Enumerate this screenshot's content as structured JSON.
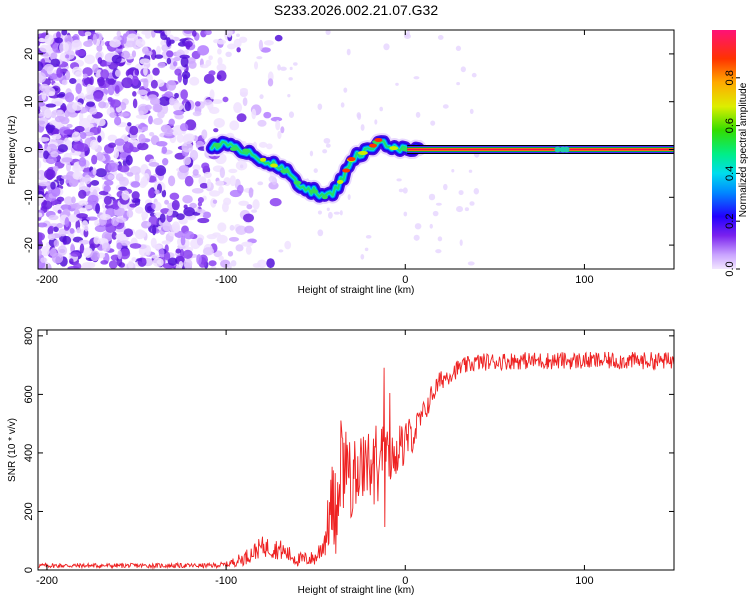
{
  "title": "S233.2026.002.21.07.G32",
  "chart_data": [
    {
      "type": "heatmap",
      "name": "spectrogram",
      "xlabel": "Height of straight line (km)",
      "ylabel": "Frequency (Hz)",
      "xlim": [
        -205,
        150
      ],
      "ylim": [
        -25,
        25
      ],
      "xticks": [
        -200,
        -100,
        0,
        100
      ],
      "xtick_labels": [
        "-200",
        "-100",
        "0",
        "100"
      ],
      "yticks": [
        -20,
        -10,
        0,
        10,
        20
      ],
      "ytick_labels": [
        "-20",
        "-10",
        "0",
        "10",
        "20"
      ],
      "ridge": {
        "x": [
          -108,
          -100,
          -95,
          -90,
          -85,
          -80,
          -75,
          -70,
          -65,
          -60,
          -55,
          -50,
          -45,
          -40,
          -35,
          -30,
          -25,
          -20,
          -15,
          -10,
          -5,
          0,
          5,
          150
        ],
        "freq": [
          1,
          1,
          0,
          0,
          -1,
          -2,
          -3,
          -4,
          -5,
          -7,
          -8,
          -9,
          -10,
          -9,
          -6,
          -2,
          -1,
          0,
          2,
          1,
          0,
          0,
          0,
          0
        ]
      },
      "noise_region": [
        -205,
        -100
      ],
      "colorbar": {
        "label": "Normalized spectral amplitude",
        "range": [
          0.0,
          1.0
        ],
        "ticks": [
          0.0,
          0.2,
          0.4,
          0.6,
          0.8
        ],
        "tick_labels": [
          "0.0",
          "0.2",
          "0.4",
          "0.6",
          "0.8"
        ]
      }
    },
    {
      "type": "line",
      "name": "snr",
      "xlabel": "Height of straight line (km)",
      "ylabel": "SNR (10 * v/v)",
      "xlim": [
        -205,
        150
      ],
      "ylim": [
        0,
        820
      ],
      "xticks": [
        -200,
        -100,
        0,
        100
      ],
      "xtick_labels": [
        "-200",
        "-100",
        "0",
        "100"
      ],
      "yticks": [
        0,
        200,
        400,
        600,
        800
      ],
      "ytick_labels": [
        "0",
        "200",
        "400",
        "600",
        "800"
      ],
      "series": [
        {
          "name": "SNR",
          "color": "#ee2222",
          "x": [
            -205,
            -150,
            -110,
            -100,
            -90,
            -80,
            -70,
            -60,
            -50,
            -45,
            -40,
            -35,
            -30,
            -25,
            -20,
            -15,
            -10,
            -5,
            0,
            5,
            10,
            15,
            20,
            30,
            40,
            60,
            80,
            100,
            120,
            150
          ],
          "y": [
            15,
            15,
            15,
            18,
            40,
            80,
            70,
            35,
            40,
            100,
            250,
            340,
            310,
            340,
            370,
            420,
            400,
            400,
            440,
            470,
            530,
            600,
            650,
            690,
            710,
            715,
            715,
            715,
            715,
            715
          ],
          "noise_amplitude": [
            8,
            8,
            8,
            10,
            25,
            35,
            35,
            25,
            25,
            60,
            150,
            200,
            150,
            120,
            100,
            90,
            80,
            90,
            80,
            60,
            45,
            40,
            35,
            30,
            30,
            30,
            30,
            30,
            30,
            30
          ]
        }
      ]
    }
  ]
}
